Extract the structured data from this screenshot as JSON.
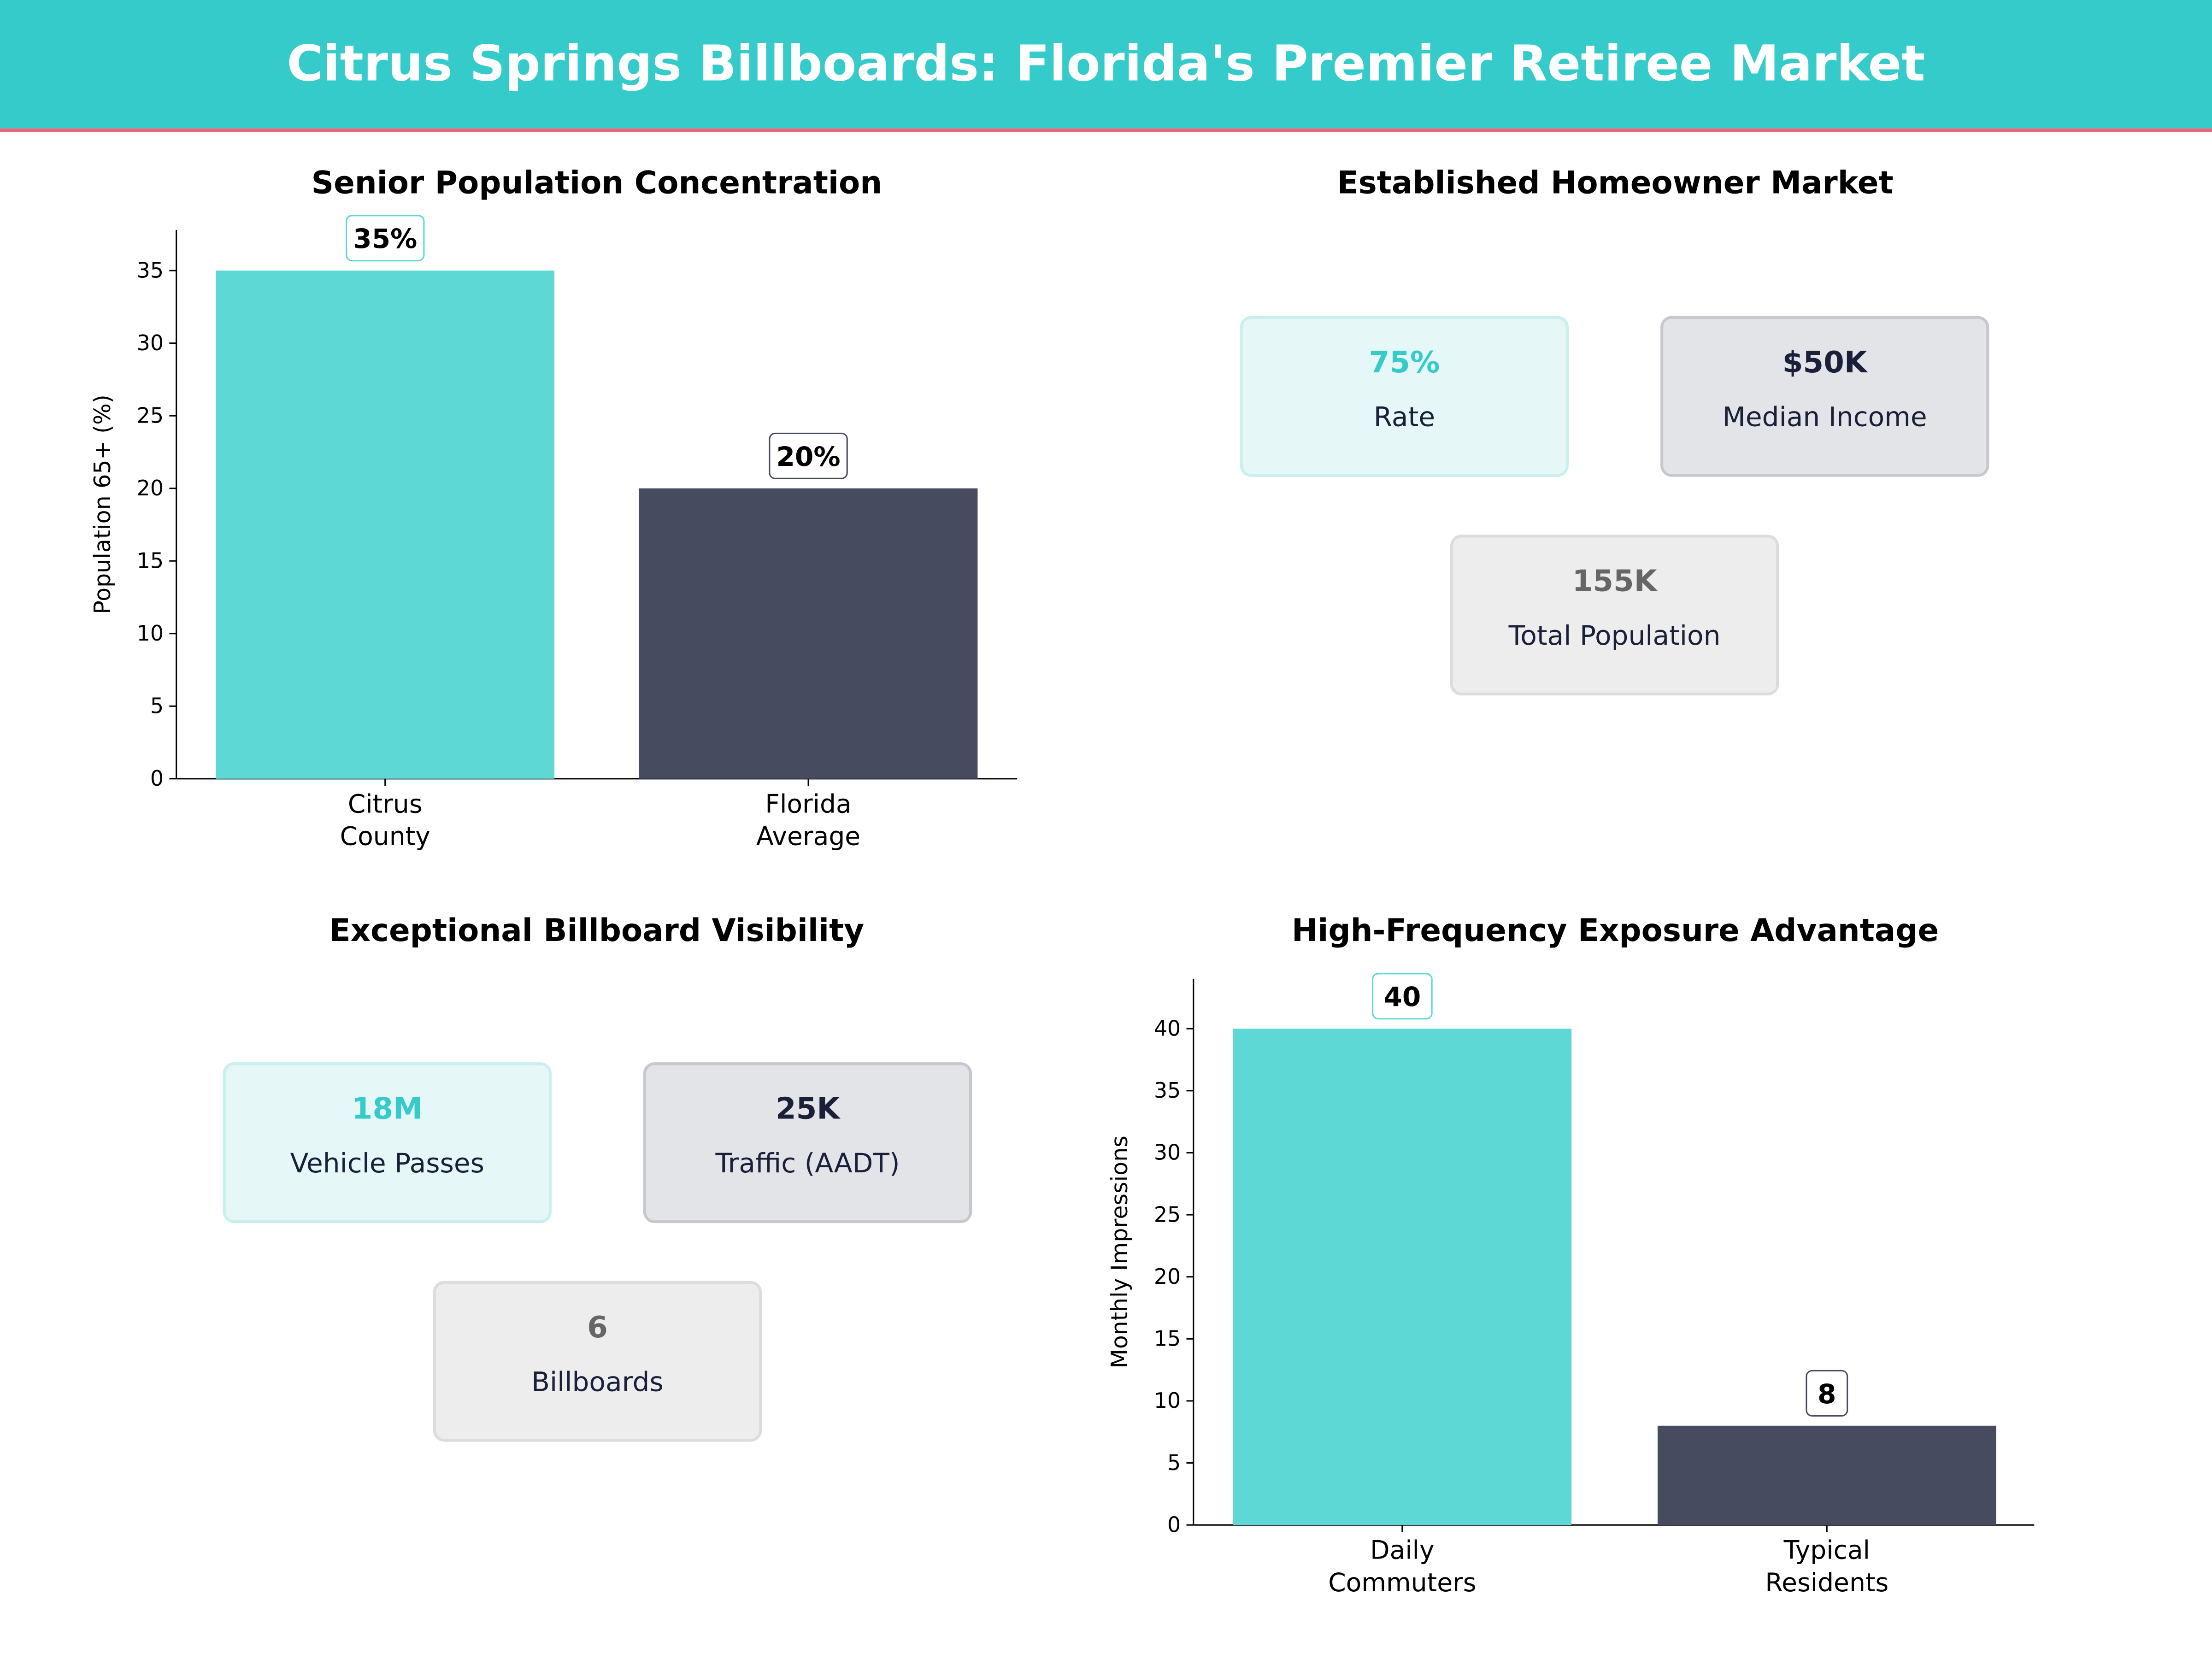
{
  "header": {
    "title": "Citrus Springs Billboards: Florida's Premier Retiree Market"
  },
  "colors": {
    "header_bg": "#36CBCB",
    "header_rule": "#E8677A",
    "teal": "#5DD8D4",
    "dark": "#464B60",
    "teal_text": "#36CBCB",
    "dark_text": "#1A1F3A",
    "gray_text": "#666666"
  },
  "chart_data": [
    {
      "type": "bar",
      "title": "Senior Population Concentration",
      "categories": [
        "Citrus\nCounty",
        "Florida\nAverage"
      ],
      "values": [
        35,
        20
      ],
      "data_labels": [
        "35%",
        "20%"
      ],
      "xlabel": "",
      "ylabel": "Population 65+ (%)",
      "ylim": [
        0,
        37.8
      ],
      "yticks": [
        0,
        5,
        10,
        15,
        20,
        25,
        30,
        35
      ],
      "grid": false
    },
    {
      "type": "table",
      "title": "Established Homeowner Market",
      "cards": [
        {
          "value": "75%",
          "label": "Rate",
          "style": "teal"
        },
        {
          "value": "$50K",
          "label": "Median Income",
          "style": "dark"
        },
        {
          "value": "155K",
          "label": "Total Population",
          "style": "gray"
        }
      ]
    },
    {
      "type": "table",
      "title": "Exceptional Billboard Visibility",
      "cards": [
        {
          "value": "18M",
          "label": "Vehicle Passes",
          "style": "teal"
        },
        {
          "value": "25K",
          "label": "Traffic (AADT)",
          "style": "dark"
        },
        {
          "value": "6",
          "label": "Billboards",
          "style": "gray"
        }
      ]
    },
    {
      "type": "bar",
      "title": "High-Frequency Exposure Advantage",
      "categories": [
        "Daily\nCommuters",
        "Typical\nResidents"
      ],
      "values": [
        40,
        8
      ],
      "data_labels": [
        "40",
        "8"
      ],
      "xlabel": "",
      "ylabel": "Monthly Impressions",
      "ylim": [
        0,
        44
      ],
      "yticks": [
        0,
        5,
        10,
        15,
        20,
        25,
        30,
        35,
        40
      ],
      "grid": false
    }
  ]
}
